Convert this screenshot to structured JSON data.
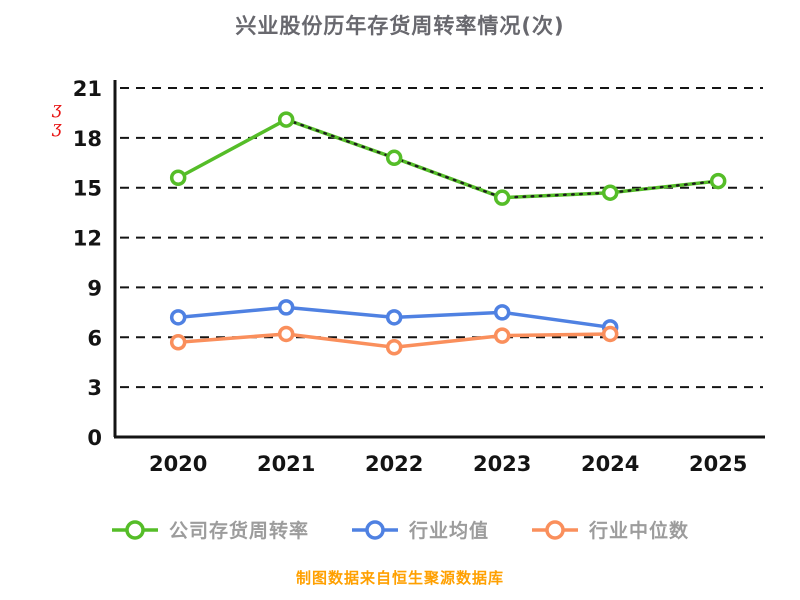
{
  "title": "兴业股份历年存货周转率情况(次)",
  "footer": "制图数据来自恒生聚源数据库",
  "annotations": {
    "red_mark": {
      "text": "ʒʒ",
      "color": "#e81414"
    }
  },
  "colors": {
    "company_line": "#55bd28",
    "industry_mean_line": "#4f81e2",
    "industry_median_line": "#fa8f5c",
    "axis": "#141414",
    "title_text": "#68686e",
    "legend_text": "#9c9c9c",
    "footer_text": "#ffa000"
  },
  "chart_data": {
    "type": "line",
    "title": "兴业股份历年存货周转率情况(次)",
    "xlabel": "",
    "ylabel": "",
    "x": [
      "2020",
      "2021",
      "2022",
      "2023",
      "2024",
      "2025"
    ],
    "ylim": [
      0,
      21
    ],
    "yticks": [
      0,
      3,
      6,
      9,
      12,
      15,
      18,
      21
    ],
    "grid": "dashed-horizontal",
    "legend_position": "bottom",
    "series": [
      {
        "name": "公司存货周转率",
        "color": "#55bd28",
        "values": [
          15.6,
          19.1,
          16.8,
          14.4,
          14.7,
          15.4
        ],
        "overlay": "black-dotted"
      },
      {
        "name": "行业均值",
        "color": "#4f81e2",
        "values": [
          7.2,
          7.8,
          7.2,
          7.5,
          6.6,
          null
        ]
      },
      {
        "name": "行业中位数",
        "color": "#fa8f5c",
        "values": [
          5.7,
          6.2,
          5.4,
          6.1,
          6.2,
          null
        ]
      }
    ]
  },
  "legend": {
    "items": [
      {
        "label": "公司存货周转率",
        "color": "#55bd28"
      },
      {
        "label": "行业均值",
        "color": "#4f81e2"
      },
      {
        "label": "行业中位数",
        "color": "#fa8f5c"
      }
    ]
  }
}
